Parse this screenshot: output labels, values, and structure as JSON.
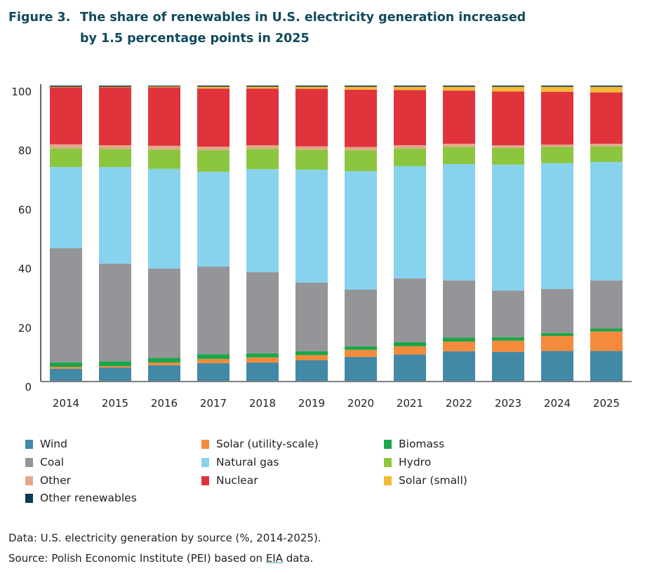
{
  "chart_data": {
    "type": "bar",
    "stacked": true,
    "title_prefix": "Figure 3.",
    "title_line1": "The share of renewables in U.S. electricity generation increased",
    "title_line2": "by 1.5 percentage points in 2025",
    "xlabel": "",
    "ylabel": "",
    "ylim": [
      0,
      100
    ],
    "yticks": [
      "0",
      "20",
      "40",
      "60",
      "80",
      "100"
    ],
    "categories": [
      "2014",
      "2015",
      "2016",
      "2017",
      "2018",
      "2019",
      "2020",
      "2021",
      "2022",
      "2023",
      "2024",
      "2025"
    ],
    "series": [
      {
        "name": "Wind",
        "color": "#4289a6",
        "values": [
          4.1,
          4.5,
          5.3,
          6.0,
          6.2,
          7.0,
          8.1,
          8.9,
          10.0,
          9.8,
          10.1,
          10.1
        ]
      },
      {
        "name": "Solar (utility-scale)",
        "color": "#f58a3c",
        "values": [
          0.6,
          0.5,
          0.9,
          1.4,
          1.7,
          1.7,
          2.4,
          2.8,
          3.3,
          3.8,
          5.1,
          6.6
        ]
      },
      {
        "name": "Biomass",
        "color": "#1aa64a",
        "values": [
          1.5,
          1.6,
          1.6,
          1.6,
          1.4,
          1.3,
          1.2,
          1.4,
          1.3,
          1.2,
          1.0,
          1.0
        ]
      },
      {
        "name": "Coal",
        "color": "#939598",
        "values": [
          38.7,
          33.1,
          30.2,
          29.7,
          27.5,
          23.3,
          19.2,
          21.6,
          19.4,
          15.8,
          14.9,
          16.3
        ]
      },
      {
        "name": "Natural gas",
        "color": "#87d3ee",
        "values": [
          27.5,
          32.7,
          33.8,
          32.1,
          34.9,
          38.2,
          40.1,
          38.0,
          39.4,
          42.6,
          42.6,
          40.1
        ]
      },
      {
        "name": "Hydro",
        "color": "#8cc63f",
        "values": [
          6.3,
          6.1,
          6.5,
          7.3,
          6.9,
          6.8,
          7.1,
          6.0,
          5.8,
          5.7,
          5.5,
          5.3
        ]
      },
      {
        "name": "Other",
        "color": "#e2a98a",
        "values": [
          1.4,
          1.3,
          1.3,
          1.2,
          1.2,
          1.1,
          1.1,
          1.1,
          1.1,
          0.9,
          0.8,
          0.9
        ]
      },
      {
        "name": "Nuclear",
        "color": "#e0333c",
        "values": [
          19.3,
          19.6,
          19.8,
          19.7,
          19.2,
          19.5,
          19.4,
          18.7,
          18.0,
          18.2,
          17.9,
          17.4
        ]
      },
      {
        "name": "Solar (small)",
        "color": "#f4b935",
        "values": [
          0.2,
          0.2,
          0.3,
          0.6,
          0.6,
          0.7,
          1.0,
          1.1,
          1.3,
          1.6,
          1.7,
          1.9
        ]
      },
      {
        "name": "Other renewables",
        "color": "#0d3a52",
        "values": [
          0.4,
          0.4,
          0.3,
          0.4,
          0.4,
          0.4,
          0.4,
          0.4,
          0.4,
          0.4,
          0.4,
          0.4
        ]
      }
    ],
    "legend_order": [
      "Wind",
      "Solar (utility-scale)",
      "Biomass",
      "Coal",
      "Natural gas",
      "Hydro",
      "Other",
      "Nuclear",
      "Solar (small)",
      "Other renewables"
    ],
    "legend_placement": "bottom",
    "grid": false
  },
  "footer": {
    "data_note": "Data: U.S. electricity generation by source (%, 2014-2025).",
    "source_prefix": "Source: Polish Economic Institute (PEI) based on ",
    "source_link": "EIA",
    "source_suffix": " data."
  }
}
